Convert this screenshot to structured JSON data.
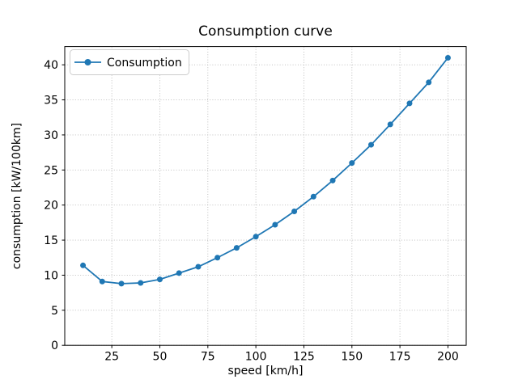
{
  "chart_data": {
    "type": "line",
    "title": "Consumption curve",
    "xlabel": "speed [km/h]",
    "ylabel": "consumption [kW/100km]",
    "x": [
      10,
      20,
      30,
      40,
      50,
      60,
      70,
      80,
      90,
      100,
      110,
      120,
      130,
      140,
      150,
      160,
      170,
      180,
      190,
      200
    ],
    "series": [
      {
        "name": "Consumption",
        "color": "#1f77b4",
        "values": [
          11.4,
          9.1,
          8.8,
          8.9,
          9.4,
          10.3,
          11.2,
          12.5,
          13.9,
          15.5,
          17.2,
          19.1,
          21.2,
          23.5,
          26.0,
          28.6,
          31.5,
          34.5,
          37.5,
          41.0
        ]
      }
    ],
    "xticks": [
      25,
      50,
      75,
      100,
      125,
      150,
      175,
      200
    ],
    "yticks": [
      0,
      5,
      10,
      15,
      20,
      25,
      30,
      35,
      40
    ],
    "xlim": [
      0.5,
      209.5
    ],
    "ylim": [
      0,
      42.6
    ],
    "grid": true,
    "grid_style": "dotted",
    "grid_color": "#b8b8b8",
    "spine_color": "#000000",
    "background_color": "#ffffff",
    "legend_position": "upper left",
    "marker": "circle"
  }
}
